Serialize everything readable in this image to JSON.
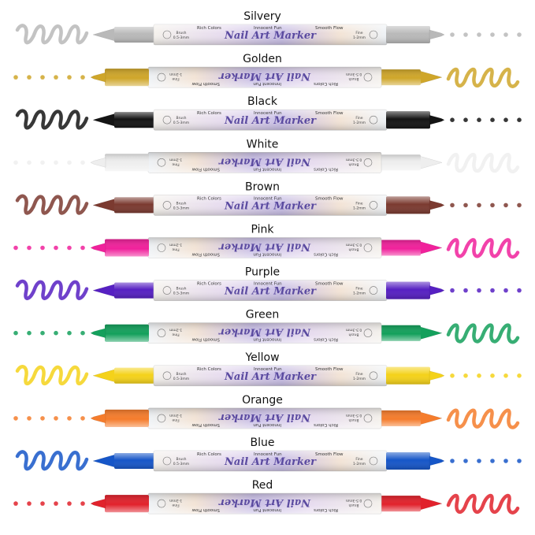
{
  "markers": [
    {
      "label": "Silvery",
      "color": "#b9b9b9"
    },
    {
      "label": "Golden",
      "color": "#cfa62a"
    },
    {
      "label": "Black",
      "color": "#141414"
    },
    {
      "label": "White",
      "color": "#eeeeee"
    },
    {
      "label": "Brown",
      "color": "#7b3a30"
    },
    {
      "label": "Pink",
      "color": "#f0219b"
    },
    {
      "label": "Purple",
      "color": "#5620c2"
    },
    {
      "label": "Green",
      "color": "#14a05c"
    },
    {
      "label": "Yellow",
      "color": "#f4d21a"
    },
    {
      "label": "Orange",
      "color": "#f57c2c"
    },
    {
      "label": "Blue",
      "color": "#1656c8"
    },
    {
      "label": "Red",
      "color": "#e1222c"
    }
  ],
  "barrel": {
    "brand": "Nail Art Marker",
    "features": [
      "Rich Colors",
      "Innocent Fun",
      "Smooth Flow"
    ],
    "brush": "Brush",
    "brush_size": "0.5-3mm",
    "fine": "Fine",
    "fine_size": "1-2mm"
  }
}
